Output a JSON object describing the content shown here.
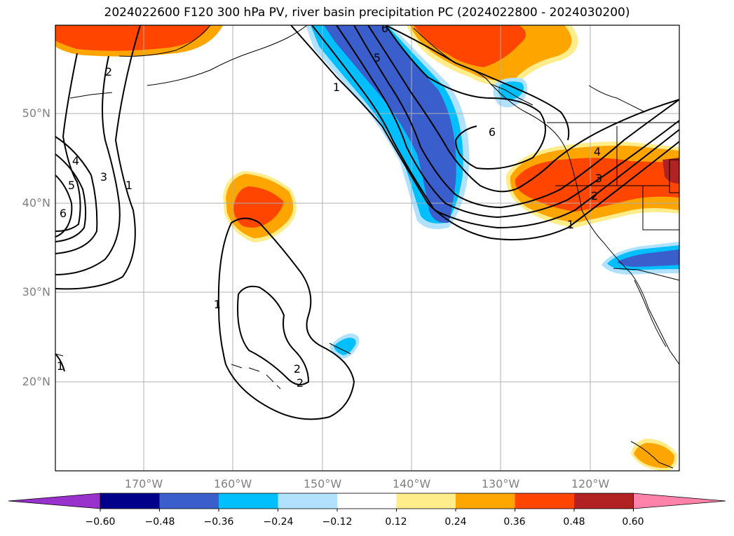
{
  "title": "2024022600 F120 300 hPa PV, river basin precipitation PC (2024022800 - 2024030200)",
  "map": {
    "lat_labels": [
      "50°N",
      "40°N",
      "30°N",
      "20°N"
    ],
    "lon_labels": [
      "170°W",
      "160°W",
      "150°W",
      "140°W",
      "130°W",
      "120°W"
    ],
    "contour_labels": [
      "6",
      "5",
      "1",
      "2",
      "4",
      "5",
      "3",
      "1",
      "6",
      "1",
      "2",
      "1",
      "6",
      "4",
      "3",
      "2",
      "1",
      "2"
    ]
  },
  "colorbar": {
    "tick_labels": [
      "−0.60",
      "−0.48",
      "−0.36",
      "−0.24",
      "−0.12",
      "0.12",
      "0.24",
      "0.36",
      "0.48",
      "0.60"
    ],
    "colors": [
      "#9932cc",
      "#00008b",
      "#3a5fcd",
      "#00bfff",
      "#b0e2ff",
      "#ffffff",
      "#ffec8b",
      "#ffa500",
      "#ff4500",
      "#b22222",
      "#ff82ab"
    ]
  }
}
